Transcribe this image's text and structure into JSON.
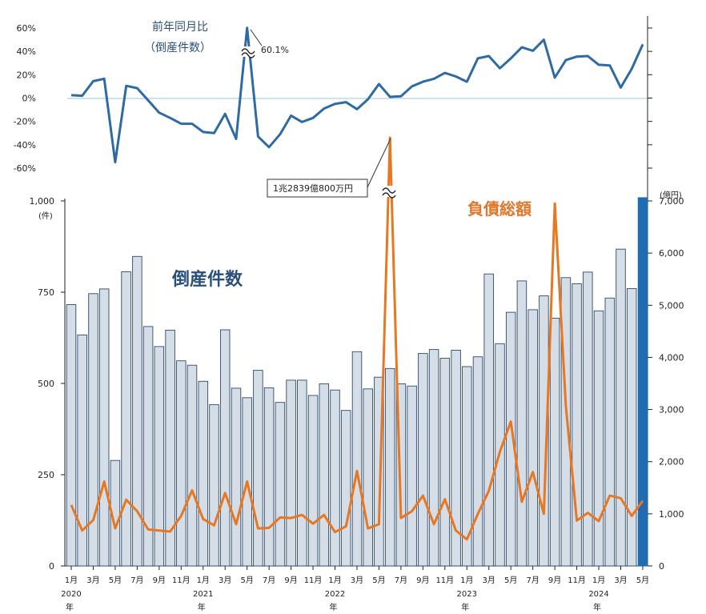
{
  "chart_data": [
    {
      "type": "line",
      "title": "前年同月比",
      "subtitle": "（倒産件数）",
      "y_tick_labels": [
        "60%",
        "40%",
        "20%",
        "0%",
        "-20%",
        "-40%",
        "-60%"
      ],
      "y_ticks": [
        60,
        40,
        20,
        0,
        -20,
        -40,
        -60
      ],
      "ylim": [
        -60,
        60
      ],
      "peak_annotation": "60.1%",
      "series": [
        {
          "color": "#2e6aa3",
          "values": [
            2.5,
            2.0,
            14.5,
            16.5,
            -55.0,
            10.5,
            8.5,
            -2.0,
            -12.5,
            -17.0,
            -22.0,
            -22.0,
            -29.0,
            -30.0,
            -13.5,
            -35.0,
            60.1,
            -33.0,
            -42.0,
            -31.0,
            -15.0,
            -20.5,
            -17.0,
            -9.0,
            -5.0,
            -3.5,
            -9.5,
            -1.0,
            12.0,
            1.0,
            1.5,
            10.0,
            14.0,
            16.5,
            21.5,
            18.5,
            14.0,
            34.0,
            36.0,
            25.5,
            34.0,
            43.5,
            40.5,
            50.0,
            17.5,
            32.5,
            35.5,
            36.0,
            28.5,
            28.0,
            9.0,
            25.0,
            46.0
          ]
        }
      ]
    },
    {
      "type": "bar",
      "title": "倒産件数",
      "series_title": "負債総額",
      "months": [
        "2020-01",
        "2020-02",
        "2020-03",
        "2020-04",
        "2020-05",
        "2020-06",
        "2020-07",
        "2020-08",
        "2020-09",
        "2020-10",
        "2020-11",
        "2020-12",
        "2021-01",
        "2021-02",
        "2021-03",
        "2021-04",
        "2021-05",
        "2021-06",
        "2021-07",
        "2021-08",
        "2021-09",
        "2021-10",
        "2021-11",
        "2021-12",
        "2022-01",
        "2022-02",
        "2022-03",
        "2022-04",
        "2022-05",
        "2022-06",
        "2022-07",
        "2022-08",
        "2022-09",
        "2022-10",
        "2022-11",
        "2022-12",
        "2023-01",
        "2023-02",
        "2023-03",
        "2023-04",
        "2023-05",
        "2023-06",
        "2023-07",
        "2023-08",
        "2023-09",
        "2023-10",
        "2023-11",
        "2023-12",
        "2024-01",
        "2024-02",
        "2024-03",
        "2024-04",
        "2024-05"
      ],
      "x_tick_labels": [
        "1月",
        "3月",
        "5月",
        "7月",
        "9月",
        "11月",
        "1月",
        "3月",
        "5月",
        "7月",
        "9月",
        "11月",
        "1月",
        "3月",
        "5月",
        "7月",
        "9月",
        "11月",
        "1月",
        "3月",
        "5月",
        "7月",
        "9月",
        "11月",
        "1月",
        "3月",
        "5月"
      ],
      "year_labels": [
        {
          "month_index": 0,
          "year": "2020",
          "suffix": "年"
        },
        {
          "month_index": 12,
          "year": "2021",
          "suffix": "年"
        },
        {
          "month_index": 24,
          "year": "2022",
          "suffix": "年"
        },
        {
          "month_index": 36,
          "year": "2023",
          "suffix": "年"
        },
        {
          "month_index": 48,
          "year": "2024",
          "suffix": "年"
        }
      ],
      "left_axis": {
        "unit": "(件)",
        "ylim": [
          0,
          1000
        ],
        "ticks": [
          0,
          250,
          500,
          750,
          1000
        ],
        "tick_labels": [
          "0",
          "250",
          "500",
          "750",
          "1,000"
        ]
      },
      "right_axis": {
        "unit": "(億円)",
        "ylim": [
          0,
          7000
        ],
        "ticks": [
          0,
          1000,
          2000,
          3000,
          4000,
          5000,
          6000,
          7000
        ],
        "tick_labels": [
          "0",
          "1,000",
          "2,000",
          "3,000",
          "4,000",
          "5,000",
          "6,000",
          "7,000"
        ]
      },
      "counts": [
        716,
        633,
        746,
        759,
        289,
        806,
        848,
        656,
        601,
        646,
        562,
        550,
        506,
        442,
        647,
        487,
        461,
        536,
        488,
        448,
        509,
        509,
        467,
        499,
        482,
        426,
        587,
        485,
        517,
        541,
        499,
        493,
        582,
        593,
        569,
        591,
        546,
        573,
        800,
        609,
        695,
        781,
        702,
        740,
        679,
        790,
        773,
        805,
        699,
        734,
        868,
        760,
        1009
      ],
      "debt": [
        1170,
        680,
        880,
        1620,
        720,
        1270,
        1050,
        700,
        680,
        660,
        960,
        1450,
        900,
        780,
        1400,
        800,
        1620,
        720,
        730,
        930,
        920,
        980,
        810,
        980,
        650,
        760,
        1820,
        720,
        800,
        12839,
        920,
        1050,
        1350,
        800,
        1280,
        680,
        510,
        1000,
        1440,
        2190,
        2770,
        1230,
        1800,
        1000,
        6950,
        3070,
        870,
        1020,
        860,
        1350,
        1300,
        960,
        1250
      ],
      "debt_peak_annotation": "1兆2839億800万円",
      "colors": {
        "bar_fill": "#d5dde7",
        "bar_stroke": "#2e4a6b",
        "latest_bar": "#1f6cb4",
        "debt_line": "#e87722"
      }
    }
  ]
}
